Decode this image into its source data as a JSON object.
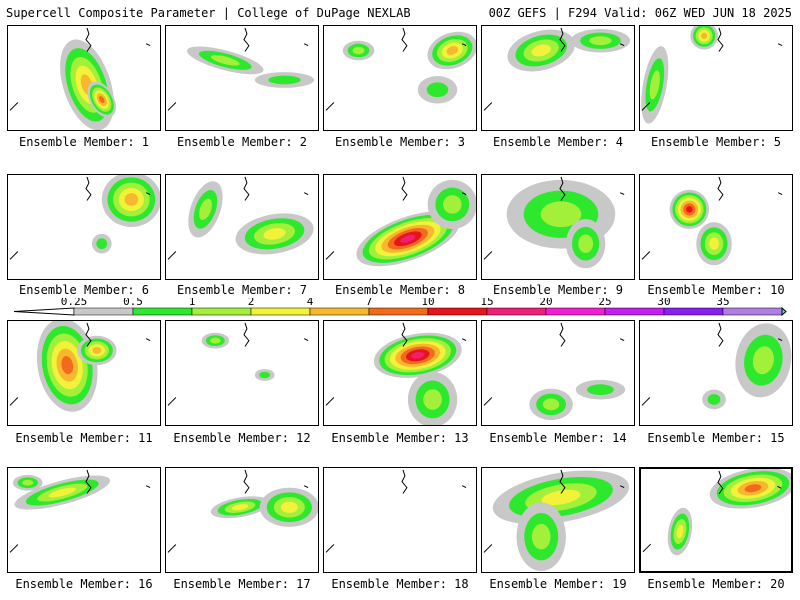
{
  "header": {
    "left_title": "Supercell Composite Parameter | College of DuPage NEXLAB",
    "right_title": "00Z GEFS | F294 Valid: 06Z WED JUN 18 2025"
  },
  "colorbar": {
    "labels": [
      "0.25",
      "0.5",
      "1",
      "2",
      "4",
      "7",
      "10",
      "15",
      "20",
      "25",
      "30",
      "35"
    ],
    "colors": [
      "#c8c8c8",
      "#2ee82e",
      "#a3f03a",
      "#f2f23a",
      "#f7b72e",
      "#f26b1c",
      "#e8141c",
      "#ef1f78",
      "#f21fd2",
      "#c41ff2",
      "#8a1ff2",
      "#b07de3",
      "#39e3f2"
    ]
  },
  "panels": [
    {
      "label": "Ensemble Member: 1"
    },
    {
      "label": "Ensemble Member: 2"
    },
    {
      "label": "Ensemble Member: 3"
    },
    {
      "label": "Ensemble Member: 4"
    },
    {
      "label": "Ensemble Member: 5"
    },
    {
      "label": "Ensemble Member: 6"
    },
    {
      "label": "Ensemble Member: 7"
    },
    {
      "label": "Ensemble Member: 8"
    },
    {
      "label": "Ensemble Member: 9"
    },
    {
      "label": "Ensemble Member: 10"
    },
    {
      "label": "Ensemble Member: 11"
    },
    {
      "label": "Ensemble Member: 12"
    },
    {
      "label": "Ensemble Member: 13"
    },
    {
      "label": "Ensemble Member: 14"
    },
    {
      "label": "Ensemble Member: 15"
    },
    {
      "label": "Ensemble Member: 16"
    },
    {
      "label": "Ensemble Member: 17"
    },
    {
      "label": "Ensemble Member: 18"
    },
    {
      "label": "Ensemble Member: 19"
    },
    {
      "label": "Ensemble Member: 20"
    }
  ]
}
